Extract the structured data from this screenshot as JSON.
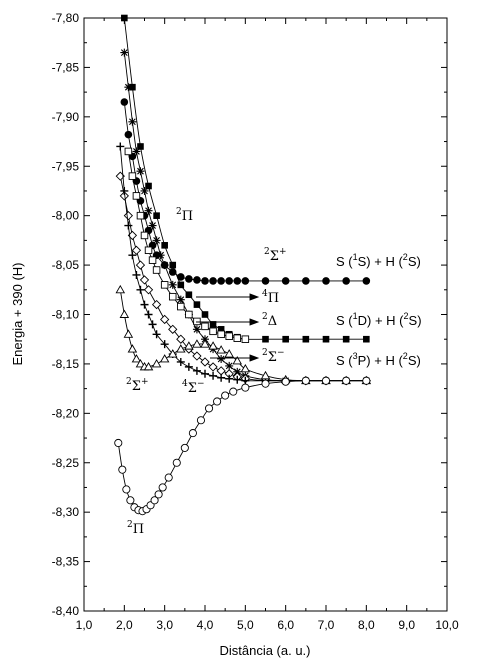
{
  "chart_data": {
    "type": "line",
    "xlabel": "Distância (a. u.)",
    "ylabel": "Energia + 390 (H)",
    "xlim": [
      1.0,
      10.0
    ],
    "ylim": [
      -8.4,
      -7.8
    ],
    "x_ticks": [
      "1,0",
      "2,0",
      "3,0",
      "4,0",
      "5,0",
      "6,0",
      "7,0",
      "8,0",
      "9,0",
      "10,0"
    ],
    "y_ticks": [
      "-7,80",
      "-7,85",
      "-7,90",
      "-7,95",
      "-8,00",
      "-8,05",
      "-8,10",
      "-8,15",
      "-8,20",
      "-8,25",
      "-8,30",
      "-8,35",
      "-8,40"
    ],
    "grid": false,
    "series": [
      {
        "marker": "square-filled",
        "x": [
          2.0,
          2.2,
          2.4,
          2.6,
          2.8,
          3.0,
          3.2,
          3.4,
          3.6,
          3.8,
          4.0,
          4.2,
          4.4,
          4.6,
          4.8,
          5.0,
          5.5,
          6.0,
          6.5,
          7.0,
          7.5,
          8.0
        ],
        "y": [
          -7.8,
          -7.87,
          -7.93,
          -7.97,
          -8.0,
          -8.03,
          -8.05,
          -8.07,
          -8.08,
          -8.09,
          -8.1,
          -8.11,
          -8.115,
          -8.12,
          -8.123,
          -8.125,
          -8.125,
          -8.125,
          -8.125,
          -8.125,
          -8.125,
          -8.125
        ]
      },
      {
        "marker": "circle-filled",
        "x": [
          2.0,
          2.1,
          2.2,
          2.3,
          2.4,
          2.5,
          2.6,
          2.7,
          2.8,
          3.0,
          3.2,
          3.4,
          3.6,
          3.8,
          4.0,
          4.2,
          4.4,
          4.6,
          4.8,
          5.0,
          5.5,
          6.0,
          6.5,
          7.0,
          7.5,
          8.0
        ],
        "y": [
          -7.885,
          -7.918,
          -7.94,
          -7.965,
          -7.985,
          -8.0,
          -8.015,
          -8.03,
          -8.04,
          -8.05,
          -8.057,
          -8.062,
          -8.064,
          -8.065,
          -8.066,
          -8.066,
          -8.066,
          -8.066,
          -8.066,
          -8.066,
          -8.066,
          -8.066,
          -8.066,
          -8.066,
          -8.066,
          -8.066
        ]
      },
      {
        "marker": "asterisk",
        "x": [
          2.0,
          2.1,
          2.2,
          2.3,
          2.4,
          2.5,
          2.6,
          2.7,
          2.8,
          2.9,
          3.0,
          3.2,
          3.4,
          3.6,
          3.8,
          4.0,
          4.2,
          4.4,
          4.6,
          4.8,
          5.0,
          5.5,
          6.0,
          6.5,
          7.0,
          7.5,
          8.0
        ],
        "y": [
          -7.835,
          -7.87,
          -7.905,
          -7.935,
          -7.955,
          -7.975,
          -7.995,
          -8.01,
          -8.025,
          -8.04,
          -8.05,
          -8.07,
          -8.085,
          -8.1,
          -8.115,
          -8.125,
          -8.135,
          -8.145,
          -8.152,
          -8.158,
          -8.162,
          -8.166,
          -8.167,
          -8.167,
          -8.167,
          -8.167,
          -8.167
        ]
      },
      {
        "marker": "square-open",
        "x": [
          2.1,
          2.2,
          2.3,
          2.4,
          2.5,
          2.6,
          2.7,
          2.8,
          3.0,
          3.2,
          3.4,
          3.6,
          3.8,
          4.0,
          4.2,
          4.4,
          4.6,
          4.8,
          5.0
        ],
        "y": [
          -7.935,
          -7.96,
          -7.98,
          -8.0,
          -8.02,
          -8.035,
          -8.045,
          -8.055,
          -8.07,
          -8.082,
          -8.092,
          -8.1,
          -8.107,
          -8.112,
          -8.117,
          -8.12,
          -8.122,
          -8.124,
          -8.125
        ]
      },
      {
        "marker": "diamond-open",
        "x": [
          1.9,
          2.0,
          2.1,
          2.2,
          2.3,
          2.4,
          2.5,
          2.6,
          2.8,
          3.0,
          3.2,
          3.4,
          3.6,
          3.8,
          4.0,
          4.2,
          4.4,
          4.6,
          4.8,
          5.0,
          5.5,
          6.0,
          6.5,
          7.0,
          7.5,
          8.0
        ],
        "y": [
          -7.96,
          -7.98,
          -8.0,
          -8.02,
          -8.035,
          -8.05,
          -8.065,
          -8.075,
          -8.09,
          -8.105,
          -8.115,
          -8.125,
          -8.135,
          -8.142,
          -8.148,
          -8.153,
          -8.157,
          -8.16,
          -8.163,
          -8.165,
          -8.167,
          -8.167,
          -8.167,
          -8.167,
          -8.167,
          -8.167
        ]
      },
      {
        "marker": "plus",
        "x": [
          1.9,
          2.0,
          2.1,
          2.2,
          2.3,
          2.4,
          2.5,
          2.6,
          2.7,
          2.8,
          3.0,
          3.2,
          3.4,
          3.6,
          3.8,
          4.0,
          4.2,
          4.4,
          4.6,
          4.8,
          5.0,
          5.5,
          6.0,
          6.5,
          7.0,
          7.5,
          8.0
        ],
        "y": [
          -7.93,
          -7.975,
          -8.01,
          -8.04,
          -8.06,
          -8.075,
          -8.09,
          -8.1,
          -8.11,
          -8.12,
          -8.13,
          -8.14,
          -8.148,
          -8.153,
          -8.157,
          -8.16,
          -8.162,
          -8.164,
          -8.165,
          -8.166,
          -8.167,
          -8.167,
          -8.167,
          -8.167,
          -8.167,
          -8.167,
          -8.167
        ]
      },
      {
        "marker": "triangle-open",
        "x": [
          1.9,
          2.0,
          2.1,
          2.2,
          2.3,
          2.4,
          2.5,
          2.6,
          2.8,
          3.0,
          3.2,
          3.4,
          3.6,
          3.8,
          4.0,
          4.2,
          4.4,
          4.6,
          4.8,
          5.0,
          5.5,
          6.0,
          6.5,
          7.0,
          7.5,
          8.0
        ],
        "y": [
          -8.075,
          -8.1,
          -8.12,
          -8.135,
          -8.145,
          -8.15,
          -8.153,
          -8.153,
          -8.15,
          -8.145,
          -8.14,
          -8.135,
          -8.132,
          -8.13,
          -8.13,
          -8.132,
          -8.136,
          -8.14,
          -8.147,
          -8.155,
          -8.162,
          -8.166,
          -8.167,
          -8.167,
          -8.167,
          -8.167
        ]
      },
      {
        "marker": "circle-open",
        "x": [
          1.85,
          1.95,
          2.05,
          2.15,
          2.25,
          2.35,
          2.45,
          2.55,
          2.65,
          2.75,
          2.85,
          2.95,
          3.1,
          3.3,
          3.5,
          3.7,
          3.9,
          4.1,
          4.3,
          4.5,
          4.7,
          5.0,
          5.5,
          6.0,
          6.5,
          7.0,
          7.5,
          8.0
        ],
        "y": [
          -8.23,
          -8.257,
          -8.277,
          -8.288,
          -8.295,
          -8.298,
          -8.299,
          -8.297,
          -8.293,
          -8.288,
          -8.282,
          -8.275,
          -8.265,
          -8.25,
          -8.235,
          -8.22,
          -8.207,
          -8.195,
          -8.188,
          -8.182,
          -8.178,
          -8.174,
          -8.17,
          -8.168,
          -8.167,
          -8.167,
          -8.167,
          -8.167
        ]
      }
    ]
  },
  "annotations": {
    "pi2_upper": {
      "sup": "2",
      "sym": "Π"
    },
    "sigma2plus_upper": {
      "sup": "2",
      "sym": "Σ",
      "supr": "+"
    },
    "pi4": {
      "sup": "4",
      "sym": "Π"
    },
    "delta2": {
      "sup": "2",
      "sym": "Δ"
    },
    "sigma2minus": {
      "sup": "2",
      "sym": "Σ",
      "supr": "−"
    },
    "sigma2plus_lower": {
      "sup": "2",
      "sym": "Σ",
      "supr": "+"
    },
    "sigma4minus": {
      "sup": "4",
      "sym": "Σ",
      "supr": "−"
    },
    "pi2_lower": {
      "sup": "2",
      "sym": "Π"
    },
    "asym_1S": {
      "a": "S (",
      "b": "1",
      "c": "S)  +  H (",
      "d": "2",
      "e": "S)"
    },
    "asym_1D": {
      "a": "S (",
      "b": "1",
      "c": "D)  +  H (",
      "d": "2",
      "e": "S)"
    },
    "asym_3P": {
      "a": "S (",
      "b": "3",
      "c": "P)  +  H (",
      "d": "2",
      "e": "S)"
    }
  }
}
